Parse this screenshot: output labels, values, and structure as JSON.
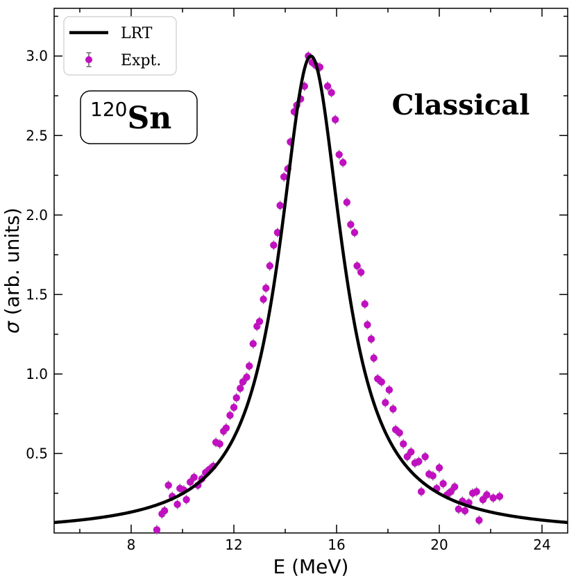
{
  "chart_data": {
    "type": "line+scatter",
    "xlabel": "E (MeV)",
    "ylabel_symbol": "σ",
    "ylabel_rest": " (arb. units)",
    "xlim": [
      5,
      25
    ],
    "ylim": [
      0.0,
      3.3
    ],
    "x_major_ticks": [
      8,
      12,
      16,
      20,
      24
    ],
    "y_major_ticks": [
      0.5,
      1.0,
      1.5,
      2.0,
      2.5,
      3.0
    ],
    "x_tick_labels": [
      "8",
      "12",
      "16",
      "20",
      "24"
    ],
    "y_tick_labels": [
      "0.5",
      "1.0",
      "1.5",
      "2.0",
      "2.5",
      "3.0"
    ],
    "grid": false,
    "legend": {
      "location": "top-left",
      "entries": [
        {
          "label": "LRT",
          "kind": "line",
          "color": "#000000"
        },
        {
          "label": "Expt.",
          "kind": "errorbar-marker",
          "color": "#c010c0"
        }
      ]
    },
    "annotations": {
      "isotope_mass": "120",
      "isotope_symbol": "Sn",
      "model": "Classical"
    },
    "series": [
      {
        "name": "LRT",
        "kind": "line",
        "color": "#000000",
        "model": {
          "form": "lorentzian",
          "peak_energy": 15.0,
          "peak_height": 3.0,
          "width": 3.0,
          "x_range": [
            5,
            25
          ]
        }
      },
      {
        "name": "Expt.",
        "kind": "scatter",
        "color": "#c010c0",
        "points": [
          [
            9.0,
            0.02
          ],
          [
            9.2,
            0.12
          ],
          [
            9.3,
            0.14
          ],
          [
            9.45,
            0.3
          ],
          [
            9.6,
            0.23
          ],
          [
            9.8,
            0.18
          ],
          [
            9.9,
            0.28
          ],
          [
            10.05,
            0.27
          ],
          [
            10.15,
            0.21
          ],
          [
            10.3,
            0.32
          ],
          [
            10.45,
            0.35
          ],
          [
            10.6,
            0.3
          ],
          [
            10.75,
            0.34
          ],
          [
            10.9,
            0.38
          ],
          [
            11.05,
            0.4
          ],
          [
            11.2,
            0.42
          ],
          [
            11.3,
            0.57
          ],
          [
            11.45,
            0.56
          ],
          [
            11.6,
            0.64
          ],
          [
            11.7,
            0.66
          ],
          [
            11.85,
            0.74
          ],
          [
            12.0,
            0.79
          ],
          [
            12.1,
            0.85
          ],
          [
            12.25,
            0.91
          ],
          [
            12.35,
            0.95
          ],
          [
            12.5,
            0.98
          ],
          [
            12.6,
            1.05
          ],
          [
            12.75,
            1.19
          ],
          [
            12.9,
            1.3
          ],
          [
            13.0,
            1.33
          ],
          [
            13.15,
            1.47
          ],
          [
            13.25,
            1.54
          ],
          [
            13.4,
            1.68
          ],
          [
            13.55,
            1.81
          ],
          [
            13.7,
            1.89
          ],
          [
            13.8,
            2.06
          ],
          [
            13.95,
            2.24
          ],
          [
            14.1,
            2.29
          ],
          [
            14.2,
            2.46
          ],
          [
            14.35,
            2.65
          ],
          [
            14.45,
            2.69
          ],
          [
            14.6,
            2.73
          ],
          [
            14.75,
            2.81
          ],
          [
            14.9,
            3.0
          ],
          [
            15.05,
            2.96
          ],
          [
            15.2,
            2.94
          ],
          [
            15.35,
            2.93
          ],
          [
            15.65,
            2.81
          ],
          [
            15.8,
            2.77
          ],
          [
            15.95,
            2.6
          ],
          [
            16.1,
            2.38
          ],
          [
            16.25,
            2.33
          ],
          [
            16.4,
            2.08
          ],
          [
            16.55,
            1.94
          ],
          [
            16.7,
            1.89
          ],
          [
            16.8,
            1.68
          ],
          [
            16.95,
            1.64
          ],
          [
            17.1,
            1.44
          ],
          [
            17.2,
            1.31
          ],
          [
            17.35,
            1.22
          ],
          [
            17.45,
            1.1
          ],
          [
            17.6,
            0.97
          ],
          [
            17.75,
            0.95
          ],
          [
            17.9,
            0.82
          ],
          [
            18.05,
            0.9
          ],
          [
            18.2,
            0.78
          ],
          [
            18.3,
            0.65
          ],
          [
            18.45,
            0.63
          ],
          [
            18.6,
            0.56
          ],
          [
            18.75,
            0.48
          ],
          [
            18.9,
            0.51
          ],
          [
            19.05,
            0.44
          ],
          [
            19.2,
            0.45
          ],
          [
            19.3,
            0.26
          ],
          [
            19.45,
            0.48
          ],
          [
            19.6,
            0.37
          ],
          [
            19.75,
            0.36
          ],
          [
            19.9,
            0.28
          ],
          [
            20.0,
            0.41
          ],
          [
            20.15,
            0.31
          ],
          [
            20.3,
            0.24
          ],
          [
            20.45,
            0.26
          ],
          [
            20.6,
            0.29
          ],
          [
            20.75,
            0.15
          ],
          [
            20.9,
            0.2
          ],
          [
            21.0,
            0.14
          ],
          [
            21.15,
            0.19
          ],
          [
            21.3,
            0.25
          ],
          [
            21.45,
            0.26
          ],
          [
            21.55,
            0.08
          ],
          [
            21.7,
            0.21
          ],
          [
            21.85,
            0.24
          ],
          [
            22.1,
            0.22
          ],
          [
            22.35,
            0.23
          ]
        ]
      }
    ]
  }
}
